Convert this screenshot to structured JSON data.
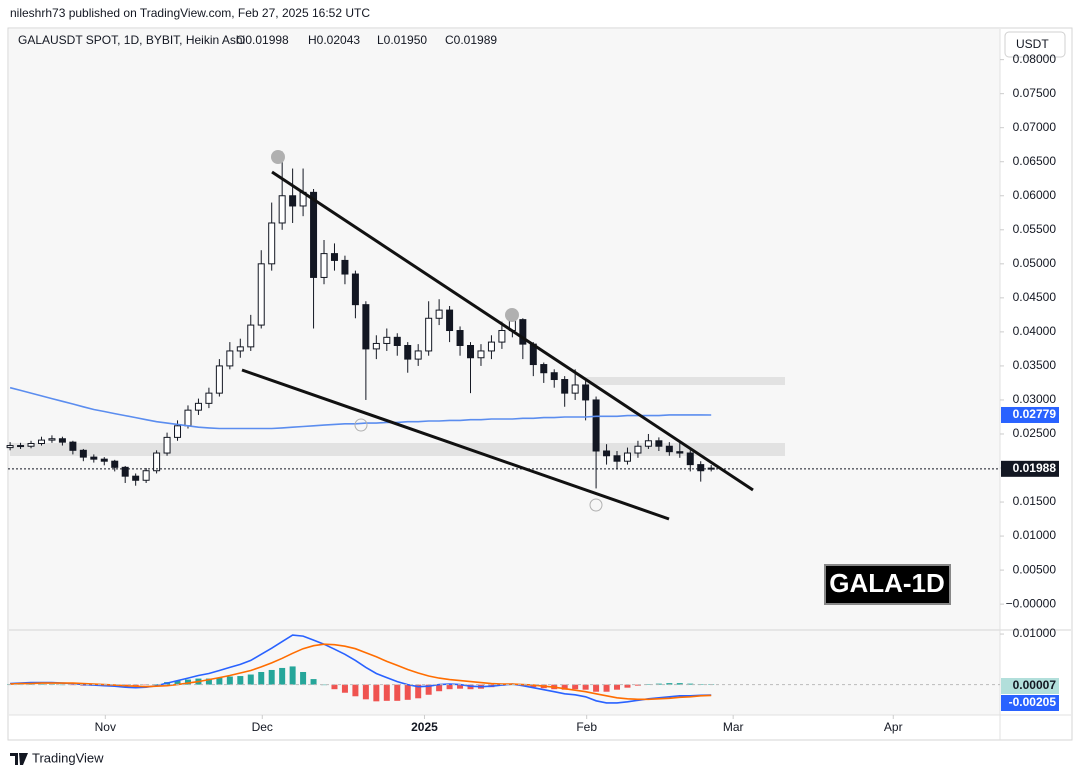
{
  "chart_data": {
    "type": "candlestick",
    "published": "nileshrh73 published on TradingView.com, Feb 27, 2025 16:52 UTC",
    "symbol": "GALAUSDT SPOT, 1D, BYBIT, Heikin Ashi",
    "ohlc_header": [
      "O0.01998",
      "H0.02043",
      "L0.01950",
      "C0.01989"
    ],
    "currency": "USDT",
    "annotation": "GALA-1D",
    "brand": "TradingView",
    "up_color": "#ffffff",
    "down_color": "#131722",
    "candles": {
      "open": [
        0.023,
        0.0233,
        0.0232,
        0.0236,
        0.0241,
        0.0243,
        0.0238,
        0.0226,
        0.0216,
        0.0213,
        0.021,
        0.0201,
        0.0188,
        0.0182,
        0.0196,
        0.0222,
        0.0245,
        0.0262,
        0.0285,
        0.0295,
        0.031,
        0.035,
        0.0372,
        0.0378,
        0.041,
        0.05,
        0.056,
        0.06,
        0.0585,
        0.0605,
        0.048,
        0.0515,
        0.0505,
        0.0485,
        0.044,
        0.0375,
        0.0383,
        0.0392,
        0.038,
        0.036,
        0.0372,
        0.042,
        0.0432,
        0.0402,
        0.038,
        0.0362,
        0.0372,
        0.0385,
        0.0402,
        0.0418,
        0.0382,
        0.0352,
        0.034,
        0.033,
        0.031,
        0.0322,
        0.03,
        0.0225,
        0.0218,
        0.021,
        0.0222,
        0.0232,
        0.024,
        0.0232,
        0.0224,
        0.0222,
        0.0205,
        0.01998
      ],
      "high": [
        0.0238,
        0.0237,
        0.024,
        0.0246,
        0.0248,
        0.0246,
        0.024,
        0.0228,
        0.022,
        0.0216,
        0.0212,
        0.0203,
        0.0192,
        0.02,
        0.0226,
        0.0252,
        0.027,
        0.0292,
        0.0302,
        0.0318,
        0.036,
        0.0385,
        0.039,
        0.0425,
        0.052,
        0.059,
        0.0665,
        0.064,
        0.064,
        0.061,
        0.0535,
        0.053,
        0.0512,
        0.049,
        0.0445,
        0.0395,
        0.0405,
        0.0398,
        0.0385,
        0.0382,
        0.0445,
        0.0448,
        0.0438,
        0.0408,
        0.0385,
        0.0382,
        0.0395,
        0.0415,
        0.0428,
        0.042,
        0.0385,
        0.0355,
        0.0345,
        0.0335,
        0.0345,
        0.033,
        0.0305,
        0.0235,
        0.0225,
        0.023,
        0.024,
        0.025,
        0.0245,
        0.0238,
        0.024,
        0.0226,
        0.021,
        0.02043
      ],
      "low": [
        0.0226,
        0.0228,
        0.0229,
        0.0233,
        0.0237,
        0.0233,
        0.022,
        0.021,
        0.0208,
        0.0204,
        0.0195,
        0.0178,
        0.0174,
        0.0178,
        0.0192,
        0.0218,
        0.024,
        0.0258,
        0.0278,
        0.0288,
        0.0305,
        0.0345,
        0.0362,
        0.0372,
        0.0405,
        0.049,
        0.055,
        0.056,
        0.057,
        0.0405,
        0.047,
        0.049,
        0.047,
        0.042,
        0.03,
        0.036,
        0.0372,
        0.0365,
        0.034,
        0.035,
        0.0365,
        0.041,
        0.0385,
        0.0365,
        0.031,
        0.035,
        0.036,
        0.0375,
        0.0392,
        0.036,
        0.0335,
        0.0325,
        0.0318,
        0.029,
        0.03,
        0.027,
        0.017,
        0.0205,
        0.0198,
        0.0205,
        0.0215,
        0.0228,
        0.0225,
        0.0218,
        0.0215,
        0.0195,
        0.018,
        0.0195
      ],
      "close": [
        0.0233,
        0.0232,
        0.0236,
        0.0241,
        0.0243,
        0.0238,
        0.0226,
        0.0216,
        0.0213,
        0.021,
        0.0201,
        0.0188,
        0.0182,
        0.0196,
        0.0222,
        0.0245,
        0.0262,
        0.0285,
        0.0295,
        0.031,
        0.035,
        0.0372,
        0.0378,
        0.041,
        0.05,
        0.056,
        0.06,
        0.0585,
        0.0605,
        0.048,
        0.0515,
        0.0505,
        0.0485,
        0.044,
        0.0375,
        0.0383,
        0.0392,
        0.038,
        0.036,
        0.0372,
        0.042,
        0.0432,
        0.0402,
        0.038,
        0.0362,
        0.0372,
        0.0385,
        0.0402,
        0.0418,
        0.0382,
        0.0352,
        0.034,
        0.033,
        0.031,
        0.0322,
        0.03,
        0.0225,
        0.0218,
        0.021,
        0.0222,
        0.0232,
        0.024,
        0.0232,
        0.0224,
        0.0222,
        0.0205,
        0.0196,
        0.01989
      ]
    },
    "ma": {
      "color": "#5b8def",
      "values": [
        0.0318,
        0.0314,
        0.031,
        0.0306,
        0.0302,
        0.0298,
        0.0294,
        0.029,
        0.0286,
        0.0283,
        0.028,
        0.0277,
        0.0274,
        0.0271,
        0.0268,
        0.0266,
        0.0264,
        0.0262,
        0.026,
        0.0259,
        0.0258,
        0.0258,
        0.0258,
        0.0258,
        0.0258,
        0.0258,
        0.0259,
        0.026,
        0.0261,
        0.0262,
        0.0263,
        0.0264,
        0.0265,
        0.0265,
        0.0266,
        0.0266,
        0.0267,
        0.0267,
        0.0268,
        0.0268,
        0.0269,
        0.0269,
        0.027,
        0.027,
        0.0271,
        0.0271,
        0.0272,
        0.0272,
        0.0272,
        0.0273,
        0.0273,
        0.0274,
        0.0274,
        0.0275,
        0.0275,
        0.0275,
        0.0276,
        0.0276,
        0.0276,
        0.0277,
        0.0277,
        0.0277,
        0.0277,
        0.0278,
        0.0278,
        0.0278,
        0.0278,
        0.02779
      ]
    },
    "last_price": 0.01988,
    "xlim": [
      -0.2,
      94.6
    ],
    "xticks": [
      {
        "value": 9.1,
        "label": "Nov"
      },
      {
        "value": 24.1,
        "label": "Dec"
      },
      {
        "value": 39.6,
        "label": "2025"
      },
      {
        "value": 55.1,
        "label": "Feb"
      },
      {
        "value": 69.1,
        "label": "Mar"
      },
      {
        "value": 84.4,
        "label": "Apr"
      }
    ],
    "ylim": [
      -0.0038,
      0.0845
    ],
    "yticks": [
      {
        "value": 0.08,
        "label": "0.08000"
      },
      {
        "value": 0.075,
        "label": "0.07500"
      },
      {
        "value": 0.07,
        "label": "0.07000"
      },
      {
        "value": 0.065,
        "label": "0.06500"
      },
      {
        "value": 0.06,
        "label": "0.06000"
      },
      {
        "value": 0.055,
        "label": "0.05500"
      },
      {
        "value": 0.05,
        "label": "0.05000"
      },
      {
        "value": 0.045,
        "label": "0.04500"
      },
      {
        "value": 0.04,
        "label": "0.04000"
      },
      {
        "value": 0.035,
        "label": "0.03500"
      },
      {
        "value": 0.03,
        "label": "0.03000"
      },
      {
        "value": 0.025,
        "label": "0.02500"
      },
      {
        "value": 0.02,
        "label": "0.02000"
      },
      {
        "value": 0.015,
        "label": "0.01500"
      },
      {
        "value": 0.01,
        "label": "0.01000"
      },
      {
        "value": 0.005,
        "label": "0.00500"
      },
      {
        "value": 0,
        "label": "−0.00000"
      }
    ],
    "grid": false,
    "macd": {
      "ylim": [
        -0.006,
        0.0108
      ],
      "yticks": [
        {
          "value": 0.01,
          "label": "0.01000"
        }
      ],
      "line_color": "#2962ff",
      "signal_color": "#ff6d00",
      "positive_color": "#26a69a",
      "negative_color": "#ef5350",
      "values": [
        0.0002,
        0.0003,
        0.0004,
        0.0004,
        0.0004,
        0.0003,
        0.0002,
        0.0,
        -0.0001,
        -0.0002,
        -0.0003,
        -0.0005,
        -0.0006,
        -0.0005,
        -0.0002,
        0.0003,
        0.0008,
        0.0013,
        0.0018,
        0.0022,
        0.0028,
        0.0034,
        0.004,
        0.0048,
        0.006,
        0.0072,
        0.0085,
        0.0098,
        0.0096,
        0.0088,
        0.008,
        0.007,
        0.006,
        0.0048,
        0.0034,
        0.0022,
        0.0014,
        0.0006,
        0.0,
        -0.0004,
        -0.0003,
        0.0,
        0.0001,
        0.0,
        -0.0003,
        -0.0004,
        -0.0003,
        -0.0001,
        0.0001,
        -0.0002,
        -0.0006,
        -0.001,
        -0.0014,
        -0.0018,
        -0.002,
        -0.0024,
        -0.0032,
        -0.0036,
        -0.0036,
        -0.0034,
        -0.0031,
        -0.0028,
        -0.0026,
        -0.0024,
        -0.0022,
        -0.0022,
        -0.0021,
        -0.00205
      ],
      "signal": [
        0.0001,
        0.0002,
        0.0002,
        0.0003,
        0.0003,
        0.0003,
        0.0003,
        0.0002,
        0.0001,
        0.0,
        -0.0001,
        -0.0002,
        -0.0003,
        -0.0004,
        -0.0003,
        -0.0002,
        0.0,
        0.0003,
        0.0006,
        0.001,
        0.0014,
        0.0018,
        0.0023,
        0.0028,
        0.0035,
        0.0043,
        0.0052,
        0.0062,
        0.0071,
        0.0077,
        0.008,
        0.0079,
        0.0076,
        0.0071,
        0.0063,
        0.0055,
        0.0046,
        0.0038,
        0.003,
        0.0023,
        0.0017,
        0.0013,
        0.001,
        0.0008,
        0.0006,
        0.0004,
        0.0002,
        0.0001,
        0.0001,
        0.0,
        -0.0001,
        -0.0003,
        -0.0005,
        -0.0008,
        -0.0011,
        -0.0014,
        -0.0018,
        -0.0022,
        -0.0026,
        -0.0028,
        -0.0029,
        -0.0029,
        -0.0028,
        -0.0027,
        -0.0025,
        -0.0024,
        -0.0022,
        -0.00212
      ],
      "histogram": [
        0.0001,
        0.0001,
        0.0002,
        0.0001,
        0.0001,
        0.0,
        -0.0001,
        -0.0002,
        -0.0002,
        -0.0002,
        -0.0002,
        -0.0003,
        -0.0003,
        -0.0001,
        0.0001,
        0.0005,
        0.0008,
        0.001,
        0.0012,
        0.0012,
        0.0014,
        0.0016,
        0.0017,
        0.002,
        0.0025,
        0.0029,
        0.0033,
        0.0036,
        0.0025,
        0.0011,
        0.0,
        -0.0009,
        -0.0016,
        -0.0023,
        -0.0029,
        -0.0033,
        -0.0032,
        -0.0032,
        -0.003,
        -0.0027,
        -0.002,
        -0.0013,
        -0.0009,
        -0.0008,
        -0.0009,
        -0.0008,
        -0.0005,
        -0.0002,
        0.0,
        -0.0002,
        -0.0005,
        -0.0007,
        -0.0009,
        -0.001,
        -0.0009,
        -0.001,
        -0.0014,
        -0.0014,
        -0.001,
        -0.0006,
        -0.0002,
        0.0001,
        0.0002,
        0.0003,
        0.0003,
        0.0002,
        0.0001,
        7e-05
      ]
    }
  }
}
